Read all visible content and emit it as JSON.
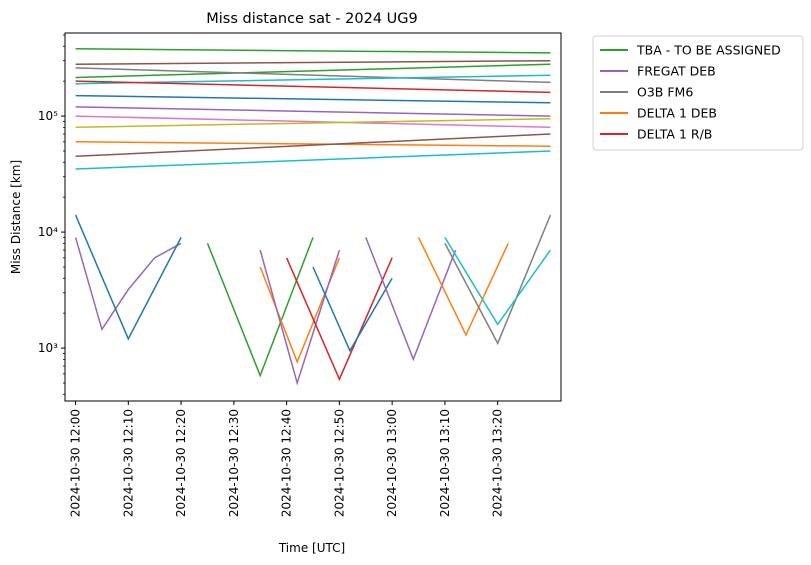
{
  "chart_data": {
    "type": "line",
    "title": "Miss distance sat - 2024 UG9",
    "xlabel": "Time [UTC]",
    "ylabel": "Miss Distance [km]",
    "yscale": "log",
    "ylim": [
      350,
      520000
    ],
    "xlim": [
      "2024-10-30 11:58",
      "2024-10-30 13:32"
    ],
    "x_ticks": [
      "2024-10-30 12:00",
      "2024-10-30 12:10",
      "2024-10-30 12:20",
      "2024-10-30 12:30",
      "2024-10-30 12:40",
      "2024-10-30 12:50",
      "2024-10-30 13:00",
      "2024-10-30 13:10",
      "2024-10-30 13:20"
    ],
    "y_ticks": [
      {
        "label": "10³",
        "value": 1000
      },
      {
        "label": "10⁴",
        "value": 10000
      },
      {
        "label": "10⁵",
        "value": 100000
      }
    ],
    "grid": false,
    "legend_position": "outside-top-right",
    "legend": [
      {
        "name": "TBA - TO BE ASSIGNED",
        "color": "#2ca02c"
      },
      {
        "name": "FREGAT DEB",
        "color": "#9467bd"
      },
      {
        "name": "O3B FM6",
        "color": "#7f7f7f"
      },
      {
        "name": "DELTA 1 DEB",
        "color": "#ff7f0e"
      },
      {
        "name": "DELTA 1 R/B",
        "color": "#d62728"
      }
    ],
    "palette": [
      "#1f77b4",
      "#ff7f0e",
      "#2ca02c",
      "#d62728",
      "#9467bd",
      "#8c564b",
      "#e377c2",
      "#7f7f7f",
      "#bcbd22",
      "#17becf"
    ],
    "series": [
      {
        "name": "TBA - TO BE ASSIGNED",
        "color": "#2ca02c",
        "x": [
          "2024-10-30 12:00",
          "2024-10-30 13:30"
        ],
        "y": [
          380000,
          350000
        ]
      },
      {
        "color": "#2ca02c",
        "x": [
          "2024-10-30 12:00",
          "2024-10-30 13:30"
        ],
        "y": [
          215000,
          280000
        ]
      },
      {
        "color": "#8c564b",
        "x": [
          "2024-10-30 12:00",
          "2024-10-30 13:30"
        ],
        "y": [
          280000,
          300000
        ]
      },
      {
        "color": "#7f7f7f",
        "x": [
          "2024-10-30 12:00",
          "2024-10-30 13:30"
        ],
        "y": [
          260000,
          195000
        ]
      },
      {
        "color": "#17becf",
        "x": [
          "2024-10-30 12:00",
          "2024-10-30 13:30"
        ],
        "y": [
          190000,
          225000
        ]
      },
      {
        "color": "#d62728",
        "x": [
          "2024-10-30 12:00",
          "2024-10-30 13:30"
        ],
        "y": [
          200000,
          160000
        ]
      },
      {
        "color": "#1f77b4",
        "x": [
          "2024-10-30 12:00",
          "2024-10-30 13:30"
        ],
        "y": [
          150000,
          130000
        ]
      },
      {
        "color": "#9467bd",
        "x": [
          "2024-10-30 12:00",
          "2024-10-30 13:30"
        ],
        "y": [
          120000,
          100000
        ]
      },
      {
        "color": "#e377c2",
        "x": [
          "2024-10-30 12:00",
          "2024-10-30 13:30"
        ],
        "y": [
          100000,
          80000
        ]
      },
      {
        "color": "#bcbd22",
        "x": [
          "2024-10-30 12:00",
          "2024-10-30 13:30"
        ],
        "y": [
          80000,
          95000
        ]
      },
      {
        "color": "#ff7f0e",
        "x": [
          "2024-10-30 12:00",
          "2024-10-30 13:30"
        ],
        "y": [
          60000,
          55000
        ]
      },
      {
        "color": "#8c564b",
        "x": [
          "2024-10-30 12:00",
          "2024-10-30 13:30"
        ],
        "y": [
          45000,
          70000
        ]
      },
      {
        "color": "#17becf",
        "x": [
          "2024-10-30 12:00",
          "2024-10-30 13:30"
        ],
        "y": [
          35000,
          50000
        ]
      },
      {
        "name": "FREGAT DEB",
        "color": "#9467bd",
        "x": [
          "2024-10-30 12:00",
          "2024-10-30 12:05",
          "2024-10-30 12:10",
          "2024-10-30 12:15",
          "2024-10-30 12:20"
        ],
        "y": [
          9000,
          1450,
          3200,
          6000,
          8000
        ]
      },
      {
        "color": "#1f77b4",
        "x": [
          "2024-10-30 12:00",
          "2024-10-30 12:10",
          "2024-10-30 12:20"
        ],
        "y": [
          14000,
          1200,
          9000
        ]
      },
      {
        "color": "#2ca02c",
        "x": [
          "2024-10-30 12:25",
          "2024-10-30 12:35",
          "2024-10-30 12:45"
        ],
        "y": [
          8000,
          580,
          9000
        ]
      },
      {
        "name": "DELTA 1 DEB",
        "color": "#ff7f0e",
        "x": [
          "2024-10-30 12:35",
          "2024-10-30 12:42",
          "2024-10-30 12:50"
        ],
        "y": [
          5000,
          760,
          6000
        ]
      },
      {
        "color": "#9467bd",
        "x": [
          "2024-10-30 12:35",
          "2024-10-30 12:42",
          "2024-10-30 12:50"
        ],
        "y": [
          7000,
          500,
          7000
        ]
      },
      {
        "name": "DELTA 1 R/B",
        "color": "#d62728",
        "x": [
          "2024-10-30 12:40",
          "2024-10-30 12:50",
          "2024-10-30 13:00"
        ],
        "y": [
          6000,
          540,
          6000
        ]
      },
      {
        "color": "#1f77b4",
        "x": [
          "2024-10-30 12:45",
          "2024-10-30 12:52",
          "2024-10-30 13:00"
        ],
        "y": [
          5000,
          950,
          4000
        ]
      },
      {
        "color": "#9467bd",
        "x": [
          "2024-10-30 12:55",
          "2024-10-30 13:04",
          "2024-10-30 13:12"
        ],
        "y": [
          9000,
          800,
          7000
        ]
      },
      {
        "color": "#ff7f0e",
        "x": [
          "2024-10-30 13:05",
          "2024-10-30 13:14",
          "2024-10-30 13:22"
        ],
        "y": [
          9000,
          1300,
          8000
        ]
      },
      {
        "name": "O3B FM6",
        "color": "#7f7f7f",
        "x": [
          "2024-10-30 13:10",
          "2024-10-30 13:20",
          "2024-10-30 13:30"
        ],
        "y": [
          8000,
          1100,
          14000
        ]
      },
      {
        "color": "#17becf",
        "x": [
          "2024-10-30 13:10",
          "2024-10-30 13:20",
          "2024-10-30 13:30"
        ],
        "y": [
          9000,
          1600,
          7000
        ]
      }
    ]
  }
}
